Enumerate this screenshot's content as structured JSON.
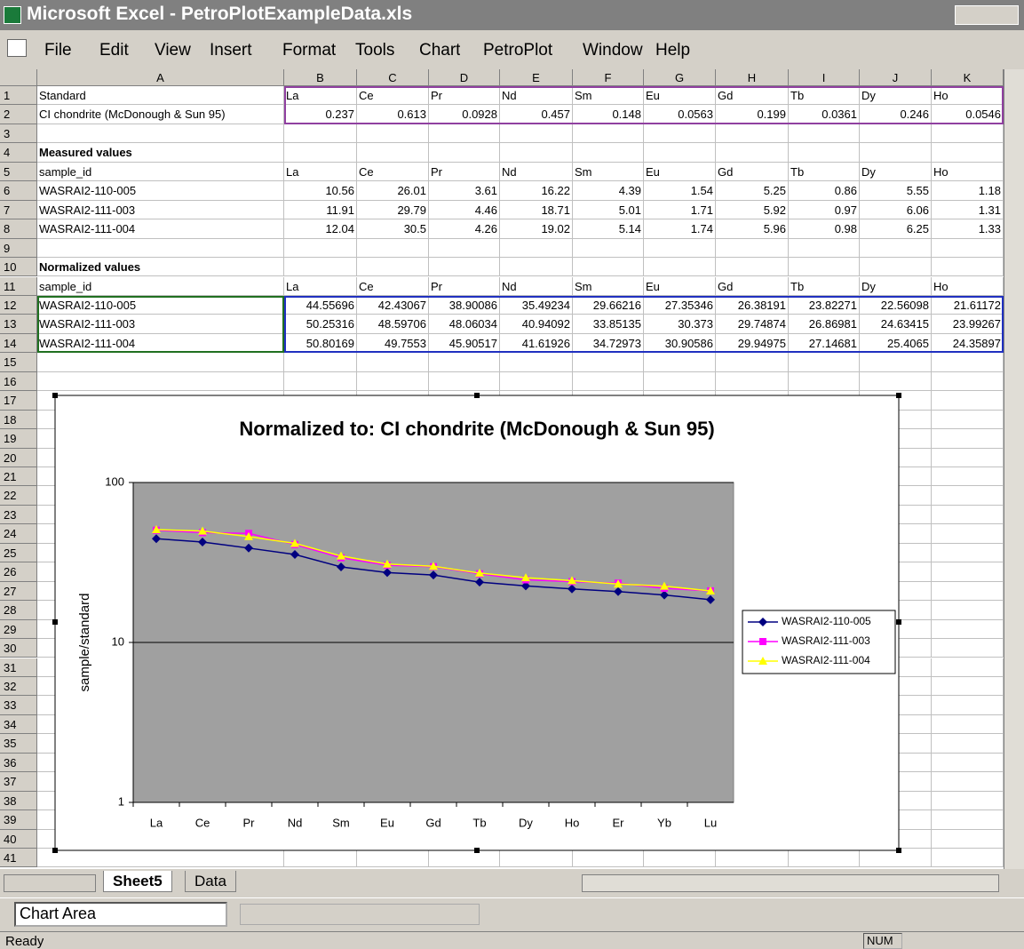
{
  "window": {
    "title": "Microsoft Excel - PetroPlotExampleData.xls"
  },
  "menu": [
    "File",
    "Edit",
    "View",
    "Insert",
    "Format",
    "Tools",
    "Chart",
    "PetroPlot",
    "Window",
    "Help"
  ],
  "columns": [
    "A",
    "B",
    "C",
    "D",
    "E",
    "F",
    "G",
    "H",
    "I",
    "J",
    "K"
  ],
  "row_headers": [
    1,
    2,
    3,
    4,
    5,
    6,
    7,
    8,
    9,
    10,
    11,
    12,
    13,
    14,
    15,
    16,
    17,
    18,
    19,
    20,
    21,
    22,
    23,
    24,
    25,
    26,
    27,
    28,
    29,
    30,
    31,
    32,
    33,
    34,
    35,
    36,
    37,
    38,
    39,
    40,
    41
  ],
  "bold_rows": [
    4,
    10
  ],
  "cells": {
    "1": {
      "A": "Standard",
      "B": "La",
      "C": "Ce",
      "D": "Pr",
      "E": "Nd",
      "F": "Sm",
      "G": "Eu",
      "H": "Gd",
      "I": "Tb",
      "J": "Dy",
      "K": "Ho"
    },
    "2": {
      "A": "CI chondrite (McDonough & Sun 95)",
      "B": "0.237",
      "C": "0.613",
      "D": "0.0928",
      "E": "0.457",
      "F": "0.148",
      "G": "0.0563",
      "H": "0.199",
      "I": "0.0361",
      "J": "0.246",
      "K": "0.0546"
    },
    "4": {
      "A": "Measured values"
    },
    "5": {
      "A": "sample_id",
      "B": "La",
      "C": "Ce",
      "D": "Pr",
      "E": "Nd",
      "F": "Sm",
      "G": "Eu",
      "H": "Gd",
      "I": "Tb",
      "J": "Dy",
      "K": "Ho"
    },
    "6": {
      "A": "WASRAI2-110-005",
      "B": "10.56",
      "C": "26.01",
      "D": "3.61",
      "E": "16.22",
      "F": "4.39",
      "G": "1.54",
      "H": "5.25",
      "I": "0.86",
      "J": "5.55",
      "K": "1.18"
    },
    "7": {
      "A": "WASRAI2-111-003",
      "B": "11.91",
      "C": "29.79",
      "D": "4.46",
      "E": "18.71",
      "F": "5.01",
      "G": "1.71",
      "H": "5.92",
      "I": "0.97",
      "J": "6.06",
      "K": "1.31"
    },
    "8": {
      "A": "WASRAI2-111-004",
      "B": "12.04",
      "C": "30.5",
      "D": "4.26",
      "E": "19.02",
      "F": "5.14",
      "G": "1.74",
      "H": "5.96",
      "I": "0.98",
      "J": "6.25",
      "K": "1.33"
    },
    "10": {
      "A": "Normalized values"
    },
    "11": {
      "A": "sample_id",
      "B": "La",
      "C": "Ce",
      "D": "Pr",
      "E": "Nd",
      "F": "Sm",
      "G": "Eu",
      "H": "Gd",
      "I": "Tb",
      "J": "Dy",
      "K": "Ho"
    },
    "12": {
      "A": "WASRAI2-110-005",
      "B": "44.55696",
      "C": "42.43067",
      "D": "38.90086",
      "E": "35.49234",
      "F": "29.66216",
      "G": "27.35346",
      "H": "26.38191",
      "I": "23.82271",
      "J": "22.56098",
      "K": "21.61172"
    },
    "13": {
      "A": "WASRAI2-111-003",
      "B": "50.25316",
      "C": "48.59706",
      "D": "48.06034",
      "E": "40.94092",
      "F": "33.85135",
      "G": "30.373",
      "H": "29.74874",
      "I": "26.86981",
      "J": "24.63415",
      "K": "23.99267"
    },
    "14": {
      "A": "WASRAI2-111-004",
      "B": "50.80169",
      "C": "49.7553",
      "D": "45.90517",
      "E": "41.61926",
      "F": "34.72973",
      "G": "30.90586",
      "H": "29.94975",
      "I": "27.14681",
      "J": "25.4065",
      "K": "24.35897"
    }
  },
  "chart_data": {
    "type": "line",
    "title": "Normalized to: CI chondrite (McDonough & Sun 95)",
    "y_label": "sample/standard",
    "categories": [
      "La",
      "Ce",
      "Pr",
      "Nd",
      "Sm",
      "Eu",
      "Gd",
      "Tb",
      "Dy",
      "Ho",
      "Er",
      "Yb",
      "Lu"
    ],
    "series": [
      {
        "name": "WASRAI2-110-005",
        "color": "#000080",
        "marker": "diamond",
        "values": [
          44.55696,
          42.43067,
          38.90086,
          35.49234,
          29.66216,
          27.35346,
          26.38191,
          23.82271,
          22.56098,
          21.61172,
          20.8,
          19.8,
          18.5
        ]
      },
      {
        "name": "WASRAI2-111-003",
        "color": "#ff00ff",
        "marker": "square",
        "values": [
          50.25316,
          48.59706,
          48.06034,
          40.94092,
          33.85135,
          30.373,
          29.74874,
          26.86981,
          24.63415,
          23.99267,
          23.5,
          21.8,
          21
        ]
      },
      {
        "name": "WASRAI2-111-004",
        "color": "#ffff00",
        "marker": "triangle",
        "values": [
          50.80169,
          49.7553,
          45.90517,
          41.61926,
          34.72973,
          30.90586,
          29.94975,
          27.14681,
          25.4065,
          24.35897,
          23.2,
          22.5,
          21
        ]
      }
    ],
    "ylim": [
      1,
      100
    ],
    "yticks": [
      1,
      10,
      100
    ],
    "log_scale": true,
    "grid": true,
    "legend": "right"
  },
  "tabs": [
    "Sheet5",
    "Data"
  ],
  "toolbar": {
    "name_box": "Chart Area"
  },
  "status": {
    "text": "Ready",
    "indicator": "NUM"
  }
}
